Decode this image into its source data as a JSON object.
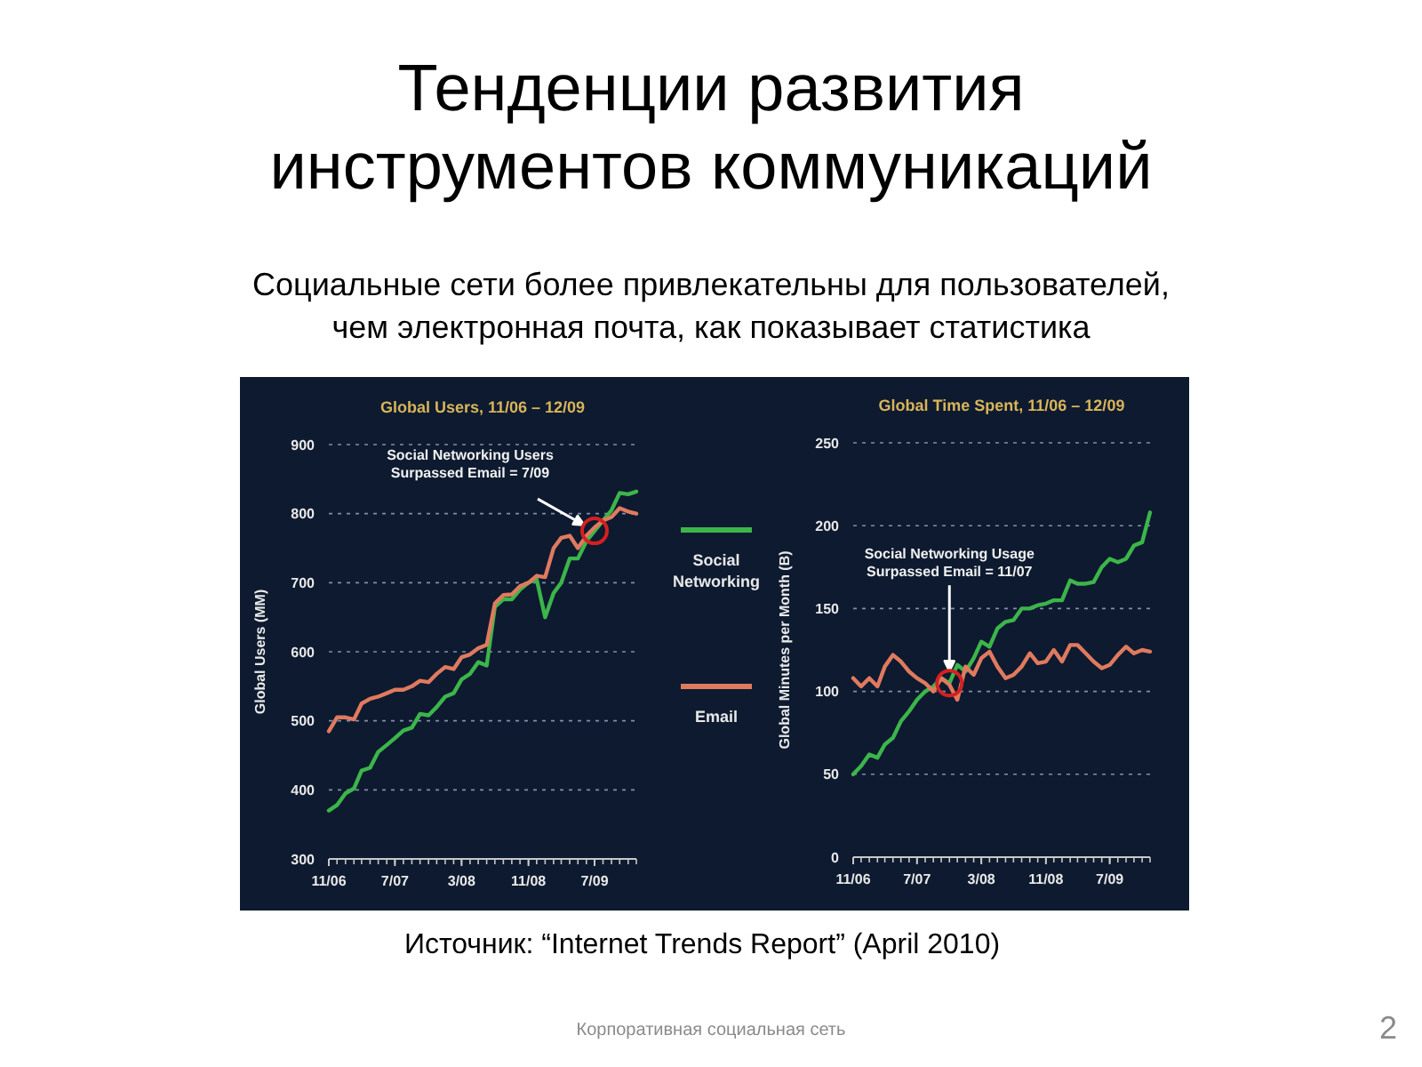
{
  "chart_data": [
    {
      "type": "other",
      "title": "Тенденции развития инструментов коммуникаций",
      "subtitle": "Социальные сети более привлекательны для пользователей, чем электронная почта, как показывает статистика",
      "annotations": [
        "Источник: “Internet Trends Report” (April 2010)",
        "Корпоративная социальная сеть",
        "2"
      ]
    },
    {
      "type": "line",
      "title": "Global Users, 11/06 – 12/09",
      "ylabel": "Global Users (MM)",
      "x": [
        "2006-11",
        "2006-12",
        "2007-01",
        "2007-02",
        "2007-03",
        "2007-04",
        "2007-05",
        "2007-06",
        "2007-07",
        "2007-08",
        "2007-09",
        "2007-10",
        "2007-11",
        "2007-12",
        "2008-01",
        "2008-02",
        "2008-03",
        "2008-04",
        "2008-05",
        "2008-06",
        "2008-07",
        "2008-08",
        "2008-09",
        "2008-10",
        "2008-11",
        "2008-12",
        "2009-01",
        "2009-02",
        "2009-03",
        "2009-04",
        "2009-05",
        "2009-06",
        "2009-07",
        "2009-08",
        "2009-09",
        "2009-10",
        "2009-11",
        "2009-12"
      ],
      "series": [
        {
          "name": "Social Networking",
          "color": "#3cb54a",
          "values": [
            370,
            378,
            395,
            402,
            428,
            432,
            455,
            465,
            475,
            486,
            490,
            510,
            508,
            520,
            535,
            540,
            560,
            568,
            585,
            580,
            665,
            676,
            676,
            690,
            700,
            705,
            650,
            685,
            700,
            735,
            735,
            760,
            775,
            790,
            805,
            830,
            828,
            832
          ]
        },
        {
          "name": "Email",
          "color": "#e07a5f",
          "values": [
            485,
            505,
            505,
            502,
            525,
            532,
            535,
            540,
            545,
            545,
            550,
            558,
            556,
            568,
            578,
            575,
            592,
            596,
            605,
            610,
            670,
            682,
            683,
            695,
            700,
            710,
            708,
            750,
            765,
            768,
            750,
            768,
            780,
            790,
            795,
            808,
            803,
            800
          ]
        }
      ],
      "xlim": [
        "2006-11",
        "2009-12"
      ],
      "xticks": [
        {
          "value": "2006-11",
          "label": "11/06"
        },
        {
          "value": "2007-07",
          "label": "7/07"
        },
        {
          "value": "2008-03",
          "label": "3/08"
        },
        {
          "value": "2008-11",
          "label": "11/08"
        },
        {
          "value": "2009-07",
          "label": "7/09"
        }
      ],
      "ylim": [
        300,
        900
      ],
      "yticks": [
        300,
        400,
        500,
        600,
        700,
        800,
        900
      ],
      "grid": "y",
      "legend": "right",
      "annotations": [
        {
          "text": "Social Networking Users Surpassed Email = 7/09",
          "x": "2009-07",
          "y": 775
        }
      ]
    },
    {
      "type": "line",
      "title": "Global Time Spent, 11/06 – 12/09",
      "ylabel": "Global Minutes per Month (B)",
      "x": [
        "2006-11",
        "2006-12",
        "2007-01",
        "2007-02",
        "2007-03",
        "2007-04",
        "2007-05",
        "2007-06",
        "2007-07",
        "2007-08",
        "2007-09",
        "2007-10",
        "2007-11",
        "2007-12",
        "2008-01",
        "2008-02",
        "2008-03",
        "2008-04",
        "2008-05",
        "2008-06",
        "2008-07",
        "2008-08",
        "2008-09",
        "2008-10",
        "2008-11",
        "2008-12",
        "2009-01",
        "2009-02",
        "2009-03",
        "2009-04",
        "2009-05",
        "2009-06",
        "2009-07",
        "2009-08",
        "2009-09",
        "2009-10",
        "2009-11",
        "2009-12"
      ],
      "series": [
        {
          "color": "#3cb54a",
          "values": [
            50,
            55,
            62,
            60,
            68,
            72,
            82,
            88,
            95,
            100,
            103,
            108,
            105,
            116,
            112,
            120,
            130,
            127,
            138,
            142,
            143,
            150,
            150,
            152,
            153,
            155,
            155,
            167,
            165,
            165,
            166,
            175,
            180,
            178,
            180,
            188,
            190,
            208
          ]
        },
        {
          "color": "#e07a5f",
          "values": [
            108,
            103,
            108,
            103,
            115,
            122,
            118,
            112,
            108,
            105,
            100,
            108,
            104,
            95,
            115,
            110,
            120,
            124,
            115,
            108,
            110,
            115,
            123,
            117,
            118,
            125,
            118,
            128,
            128,
            123,
            118,
            114,
            116,
            122,
            127,
            123,
            125,
            124
          ]
        }
      ],
      "xlim": [
        "2006-11",
        "2009-12"
      ],
      "xticks": [
        {
          "value": "2006-11",
          "label": "11/06"
        },
        {
          "value": "2007-07",
          "label": "7/07"
        },
        {
          "value": "2008-03",
          "label": "3/08"
        },
        {
          "value": "2008-11",
          "label": "11/08"
        },
        {
          "value": "2009-07",
          "label": "7/09"
        }
      ],
      "ylim": [
        0,
        250
      ],
      "yticks": [
        0,
        50,
        100,
        150,
        200,
        250
      ],
      "grid": "y",
      "annotations": [
        {
          "text": "Social Networking Usage Surpassed Email = 11/07",
          "x": "2007-11",
          "y": 105
        }
      ]
    }
  ]
}
